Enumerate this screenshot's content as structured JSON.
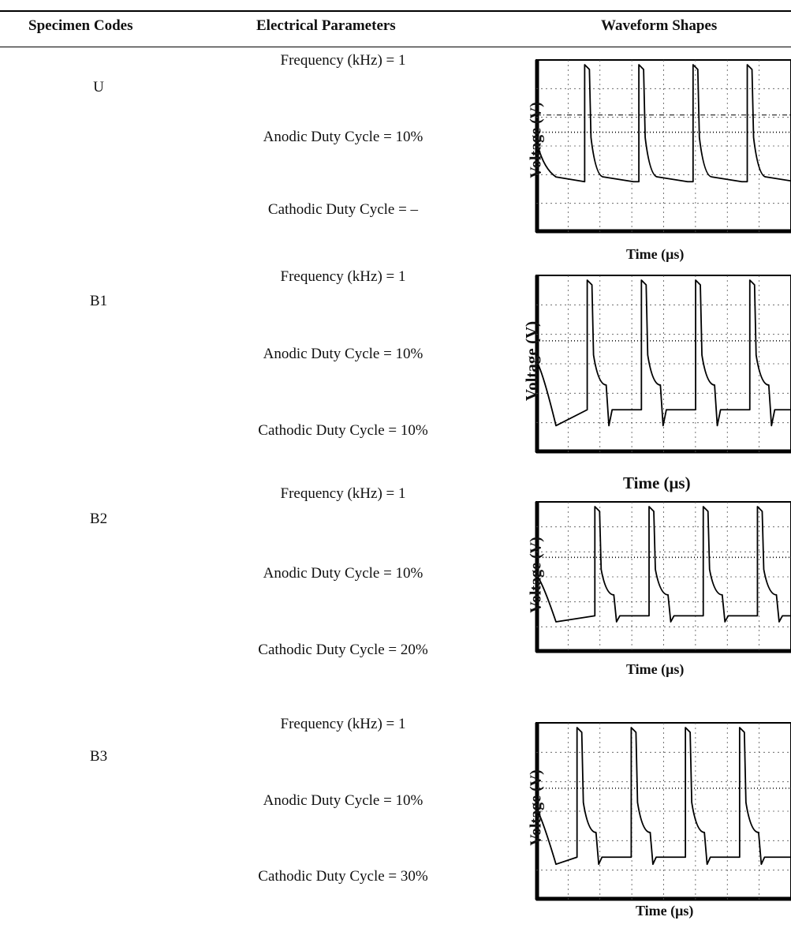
{
  "table": {
    "headers": {
      "specimen_codes": "Specimen Codes",
      "electrical_parameters": "Electrical Parameters",
      "waveform_shapes": "Waveform Shapes"
    },
    "rows": [
      {
        "code": "U",
        "frequency": "Frequency (kHz) = 1",
        "anodic": "Anodic Duty Cycle = 10%",
        "cathodic": "Cathodic Duty Cycle = –",
        "y_label": "Voltage (V)",
        "x_label": "Time (μs)"
      },
      {
        "code": "B1",
        "frequency": "Frequency (kHz) = 1",
        "anodic": "Anodic Duty Cycle = 10%",
        "cathodic": "Cathodic Duty Cycle = 10%",
        "y_label": "Voltage (V)",
        "x_label": "Time (μs)"
      },
      {
        "code": "B2",
        "frequency": "Frequency (kHz) = 1",
        "anodic": "Anodic Duty Cycle = 10%",
        "cathodic": "Cathodic Duty Cycle = 20%",
        "y_label": "Voltage (V)",
        "x_label": "Time (μs)"
      },
      {
        "code": "B3",
        "frequency": "Frequency (kHz) = 1",
        "anodic": "Anodic Duty Cycle = 10%",
        "cathodic": "Cathodic Duty Cycle = 30%",
        "y_label": "Voltage (V)",
        "x_label": "Time (μs)"
      }
    ]
  }
}
